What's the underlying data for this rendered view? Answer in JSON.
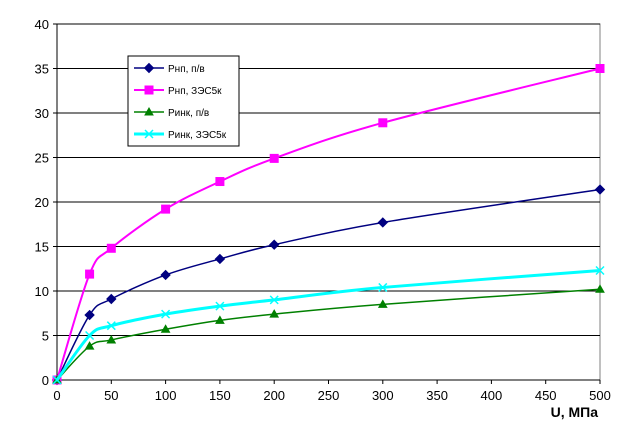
{
  "chart_data": {
    "type": "line",
    "title": "",
    "xlabel": "U, МПа",
    "ylabel": "",
    "xlim": [
      0,
      500
    ],
    "ylim": [
      0,
      40
    ],
    "xticks": [
      0,
      50,
      100,
      150,
      200,
      250,
      300,
      350,
      400,
      450,
      500
    ],
    "yticks": [
      0,
      5,
      10,
      15,
      20,
      25,
      30,
      35,
      40
    ],
    "grid": "horizontal",
    "legend_position": "top-left",
    "series": [
      {
        "name": "Рнп, п/в",
        "color": "#000080",
        "marker": "diamond",
        "x": [
          0,
          30,
          50,
          100,
          150,
          200,
          300,
          500
        ],
        "y": [
          0,
          7.3,
          9.1,
          11.8,
          13.6,
          15.2,
          17.7,
          21.4
        ]
      },
      {
        "name": "Рнп, ЗЭС5к",
        "color": "#ff00ff",
        "marker": "square",
        "x": [
          0,
          30,
          50,
          100,
          150,
          200,
          300,
          500
        ],
        "y": [
          0,
          11.9,
          14.8,
          19.2,
          22.3,
          24.9,
          28.9,
          35.0
        ]
      },
      {
        "name": "Ринк, п/в",
        "color": "#008000",
        "marker": "triangle",
        "x": [
          0,
          30,
          50,
          100,
          150,
          200,
          300,
          500
        ],
        "y": [
          0,
          3.8,
          4.5,
          5.7,
          6.7,
          7.4,
          8.5,
          10.2
        ]
      },
      {
        "name": "Ринк, ЗЭС5к",
        "color": "#00ffff",
        "marker": "x",
        "x": [
          0,
          30,
          50,
          100,
          150,
          200,
          300,
          500
        ],
        "y": [
          0,
          5.0,
          6.1,
          7.4,
          8.3,
          9.0,
          10.4,
          12.3
        ]
      }
    ]
  }
}
